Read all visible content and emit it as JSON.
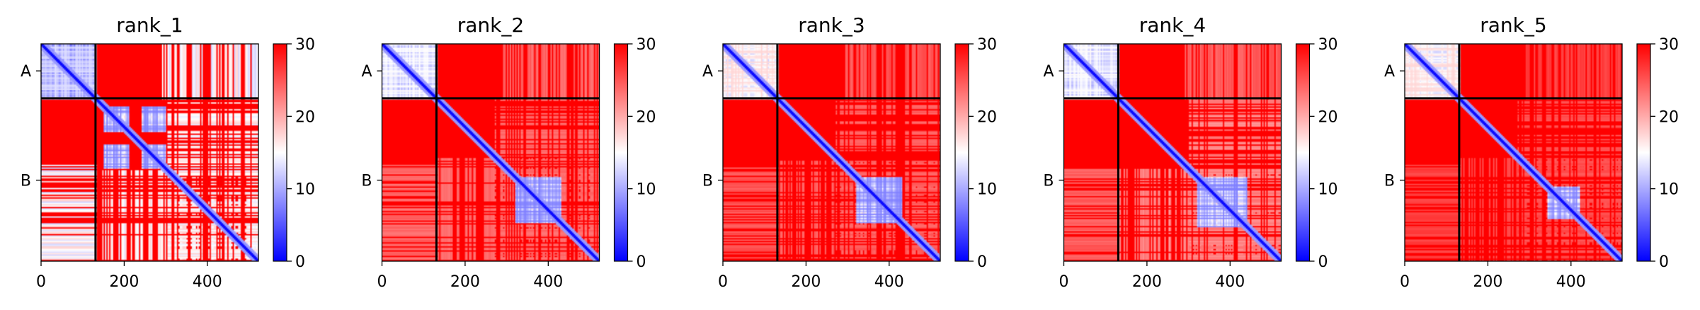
{
  "chart_data": [
    {
      "type": "heatmap",
      "title": "rank_1",
      "xlim": [
        0,
        523
      ],
      "xticks": [
        {
          "value": 0,
          "label": "0"
        },
        {
          "value": 200,
          "label": "200"
        },
        {
          "value": 400,
          "label": "400"
        }
      ],
      "yticks": [
        {
          "value": 65,
          "label": "A"
        },
        {
          "value": 328,
          "label": "B"
        }
      ],
      "chain_boundary": 131,
      "colorbar": {
        "min": 0,
        "max": 30,
        "ticks": [
          0,
          10,
          20,
          30
        ],
        "colors": [
          "#0000ff",
          "#ffffff",
          "#ff0000"
        ]
      },
      "pae_pattern": {
        "aa_low": 0.8,
        "bb_blocks": [
          [
            150,
            210
          ],
          [
            240,
            300
          ]
        ],
        "bb_blocks2": [
          [
            300,
            523
          ]
        ],
        "bb_low": 0.55,
        "ab_low": 0.6
      }
    },
    {
      "type": "heatmap",
      "title": "rank_2",
      "xlim": [
        0,
        523
      ],
      "xticks": [
        {
          "value": 0,
          "label": "0"
        },
        {
          "value": 200,
          "label": "200"
        },
        {
          "value": 400,
          "label": "400"
        }
      ],
      "yticks": [
        {
          "value": 65,
          "label": "A"
        },
        {
          "value": 328,
          "label": "B"
        }
      ],
      "chain_boundary": 131,
      "colorbar": {
        "min": 0,
        "max": 30,
        "ticks": [
          0,
          10,
          20,
          30
        ],
        "colors": [
          "#0000ff",
          "#ffffff",
          "#ff0000"
        ]
      },
      "pae_pattern": {
        "aa_low": 0.7,
        "bb_blocks": [
          [
            320,
            430
          ]
        ],
        "bb_blocks2": [
          [
            270,
            523
          ]
        ],
        "bb_low": 0.25,
        "ab_low": 0.25
      }
    },
    {
      "type": "heatmap",
      "title": "rank_3",
      "xlim": [
        0,
        523
      ],
      "xticks": [
        {
          "value": 0,
          "label": "0"
        },
        {
          "value": 200,
          "label": "200"
        },
        {
          "value": 400,
          "label": "400"
        }
      ],
      "yticks": [
        {
          "value": 65,
          "label": "A"
        },
        {
          "value": 328,
          "label": "B"
        }
      ],
      "chain_boundary": 131,
      "colorbar": {
        "min": 0,
        "max": 30,
        "ticks": [
          0,
          10,
          20,
          30
        ],
        "colors": [
          "#0000ff",
          "#ffffff",
          "#ff0000"
        ]
      },
      "pae_pattern": {
        "aa_low": 0.6,
        "bb_blocks": [
          [
            320,
            430
          ]
        ],
        "bb_blocks2": [
          [
            270,
            523
          ]
        ],
        "bb_low": 0.22,
        "ab_low": 0.2
      }
    },
    {
      "type": "heatmap",
      "title": "rank_4",
      "xlim": [
        0,
        523
      ],
      "xticks": [
        {
          "value": 0,
          "label": "0"
        },
        {
          "value": 200,
          "label": "200"
        },
        {
          "value": 400,
          "label": "400"
        }
      ],
      "yticks": [
        {
          "value": 65,
          "label": "A"
        },
        {
          "value": 328,
          "label": "B"
        }
      ],
      "chain_boundary": 131,
      "colorbar": {
        "min": 0,
        "max": 30,
        "ticks": [
          0,
          10,
          20,
          30
        ],
        "colors": [
          "#0000ff",
          "#ffffff",
          "#ff0000"
        ]
      },
      "pae_pattern": {
        "aa_low": 0.7,
        "bb_blocks": [
          [
            320,
            440
          ]
        ],
        "bb_blocks2": [
          [
            300,
            523
          ]
        ],
        "bb_low": 0.3,
        "ab_low": 0.22
      }
    },
    {
      "type": "heatmap",
      "title": "rank_5",
      "xlim": [
        0,
        523
      ],
      "xticks": [
        {
          "value": 0,
          "label": "0"
        },
        {
          "value": 200,
          "label": "200"
        },
        {
          "value": 400,
          "label": "400"
        }
      ],
      "yticks": [
        {
          "value": 65,
          "label": "A"
        },
        {
          "value": 328,
          "label": "B"
        }
      ],
      "chain_boundary": 131,
      "colorbar": {
        "min": 0,
        "max": 30,
        "ticks": [
          0,
          10,
          20,
          30
        ],
        "colors": [
          "#0000ff",
          "#ffffff",
          "#ff0000"
        ]
      },
      "pae_pattern": {
        "aa_low": 0.6,
        "bb_blocks": [
          [
            340,
            420
          ]
        ],
        "bb_blocks2": [
          [
            270,
            523
          ]
        ],
        "bb_low": 0.18,
        "ab_low": 0.15
      }
    }
  ]
}
